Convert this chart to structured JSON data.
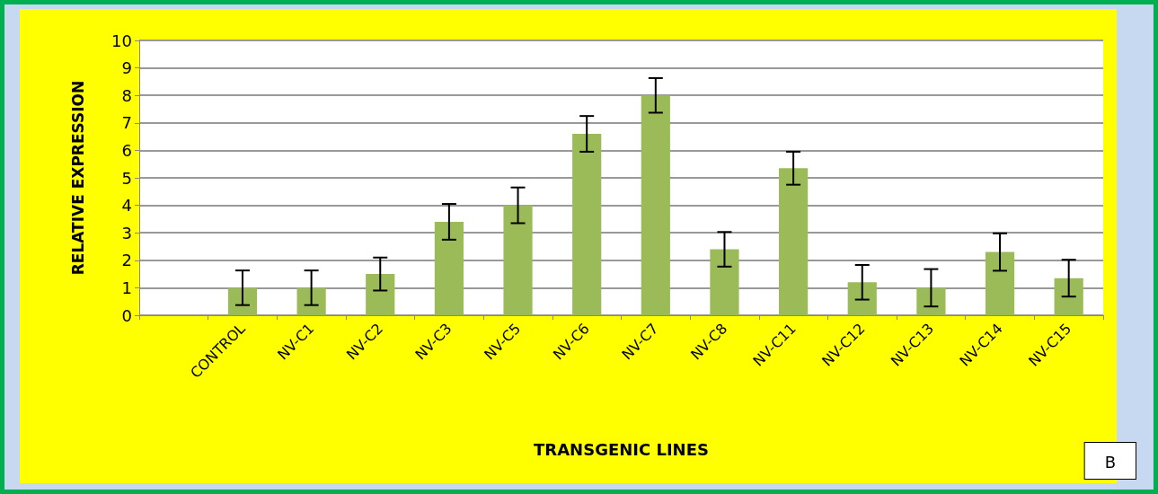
{
  "chart_data": {
    "type": "bar",
    "xlabel": "TRANSGENIC LINES",
    "ylabel": "RELATIVE EXPRESSION",
    "categories": [
      null,
      "CONTROL",
      "NV-C1",
      "NV-C2",
      "NV-C3",
      "NV-C5",
      "NV-C6",
      "NV-C7",
      "NV-C8",
      "NV-C11",
      "NV-C12",
      "NV-C13",
      "NV-C14",
      "NV-C15"
    ],
    "values": [
      null,
      1.0,
      1.0,
      1.5,
      3.4,
      4.0,
      6.6,
      8.0,
      2.4,
      5.35,
      1.2,
      1.0,
      2.3,
      1.35
    ],
    "errors": [
      null,
      0.63,
      0.63,
      0.6,
      0.65,
      0.65,
      0.65,
      0.63,
      0.63,
      0.6,
      0.63,
      0.68,
      0.68,
      0.67
    ],
    "color": "#9bbb59",
    "ylim": [
      0,
      10
    ],
    "yticks": [
      0,
      1,
      2,
      3,
      4,
      5,
      6,
      7,
      8,
      9,
      10
    ],
    "grid": "y",
    "annotations": [
      "B"
    ]
  }
}
